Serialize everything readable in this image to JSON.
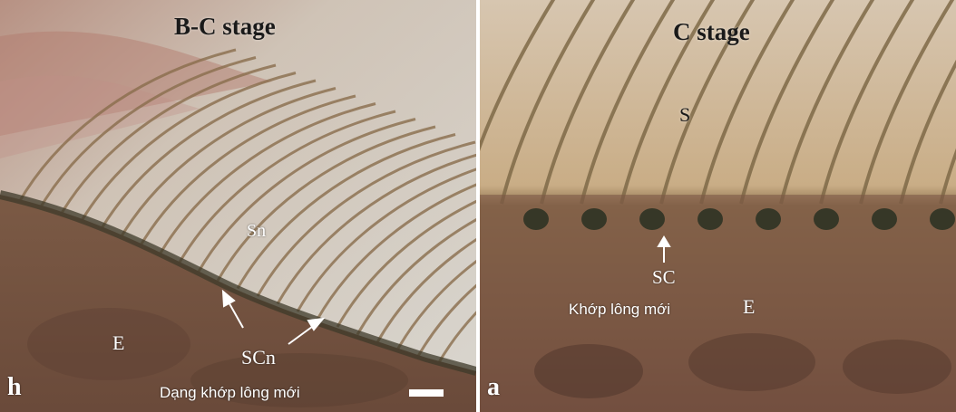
{
  "left_panel": {
    "title": "B-C stage",
    "corner_letter": "h",
    "labels": {
      "sn": "Sn",
      "e": "E",
      "scn": "SCn"
    },
    "caption": "Dạng khớp lông mới"
  },
  "right_panel": {
    "title": "C stage",
    "corner_letter": "a",
    "labels": {
      "s": "S",
      "sc": "SC",
      "e": "E"
    },
    "caption": "Khớp lông mới"
  },
  "colors": {
    "separator": "#ffffff",
    "label_text": "#ffffff",
    "title_text": "#1a1a1a"
  }
}
